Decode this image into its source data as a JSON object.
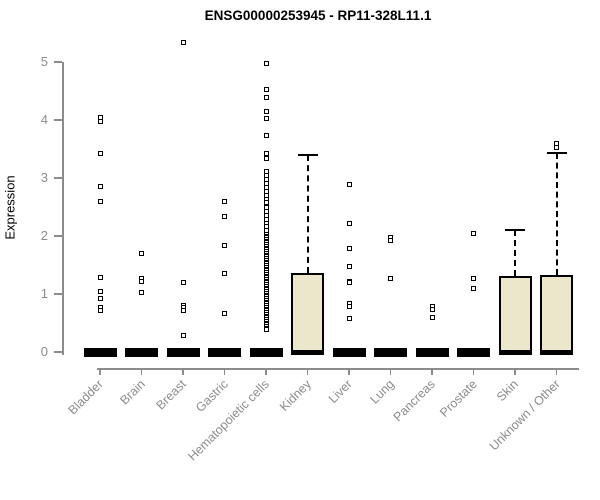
{
  "chart_data": {
    "type": "boxplot",
    "title": "ENSG00000253945 - RP11-328L11.1",
    "ylabel": "Expression",
    "ylim": [
      0,
      5.4
    ],
    "yticks": [
      0,
      1,
      2,
      3,
      4,
      5
    ],
    "grid": false,
    "legend": "none",
    "colors": {
      "box_fill": "#ece6cb",
      "box_border": "#000000",
      "axis": "#8c8c8c",
      "label_text": "#8c8c8c",
      "title_text": "#000000",
      "points": "#000000"
    },
    "categories": [
      "Bladder",
      "Brain",
      "Breast",
      "Gastric",
      "Hematopoietic cells",
      "Kidney",
      "Liver",
      "Lung",
      "Pancreas",
      "Prostate",
      "Skin",
      "Unknown / Other"
    ],
    "boxes": [
      {
        "label": "Bladder",
        "q1": 0,
        "median": 0,
        "q3": 0,
        "whisker_low": 0,
        "whisker_high": 0,
        "outliers": [
          4.05,
          3.98,
          3.43,
          2.86,
          2.59,
          1.28,
          1.05,
          0.93,
          0.76,
          0.72
        ]
      },
      {
        "label": "Brain",
        "q1": 0,
        "median": 0,
        "q3": 0,
        "whisker_low": 0,
        "whisker_high": 0,
        "outliers": [
          1.69,
          1.26,
          1.22,
          1.03
        ]
      },
      {
        "label": "Breast",
        "q1": 0,
        "median": 0,
        "q3": 0,
        "whisker_low": 0,
        "whisker_high": 0,
        "outliers": [
          5.34,
          1.19,
          0.81,
          0.76,
          0.71,
          0.29
        ]
      },
      {
        "label": "Gastric",
        "q1": 0,
        "median": 0,
        "q3": 0,
        "whisker_low": 0,
        "whisker_high": 0,
        "outliers": [
          2.59,
          2.33,
          1.84,
          1.36,
          0.67
        ]
      },
      {
        "label": "Hematopoietic cells",
        "q1": 0,
        "median": 0,
        "q3": 0,
        "whisker_low": 0,
        "whisker_high": 0,
        "outliers": [
          4.98,
          4.52,
          4.38,
          4.14,
          4.03,
          3.74,
          3.43,
          3.34,
          3.12,
          3.05,
          2.98,
          2.91,
          2.84,
          2.77,
          2.7,
          2.63,
          2.57,
          2.5,
          2.43,
          2.36,
          2.29,
          2.22,
          2.16,
          2.1,
          2.03,
          2.0,
          1.97,
          1.94,
          1.91,
          1.88,
          1.85,
          1.82,
          1.79,
          1.76,
          1.73,
          1.7,
          1.67,
          1.64,
          1.61,
          1.58,
          1.55,
          1.52,
          1.49,
          1.46,
          1.43,
          1.4,
          1.37,
          1.34,
          1.31,
          1.28,
          1.25,
          1.22,
          1.19,
          1.16,
          1.13,
          1.1,
          1.07,
          1.04,
          1.01,
          0.98,
          0.95,
          0.92,
          0.89,
          0.86,
          0.83,
          0.8,
          0.77,
          0.74,
          0.71,
          0.68,
          0.65,
          0.62,
          0.59,
          0.56,
          0.53,
          0.5,
          0.47,
          0.44,
          0.41,
          0.38
        ]
      },
      {
        "label": "Kidney",
        "q1": 0,
        "median": 0,
        "q3": 1.36,
        "whisker_low": 0,
        "whisker_high": 3.4,
        "outliers": []
      },
      {
        "label": "Liver",
        "q1": 0,
        "median": 0,
        "q3": 0,
        "whisker_low": 0,
        "whisker_high": 0,
        "outliers": [
          2.88,
          2.22,
          1.79,
          1.47,
          1.22,
          1.19,
          0.84,
          0.78,
          0.57
        ]
      },
      {
        "label": "Lung",
        "q1": 0,
        "median": 0,
        "q3": 0,
        "whisker_low": 0,
        "whisker_high": 0,
        "outliers": [
          1.98,
          1.92,
          1.26
        ]
      },
      {
        "label": "Pancreas",
        "q1": 0,
        "median": 0,
        "q3": 0,
        "whisker_low": 0,
        "whisker_high": 0,
        "outliers": [
          0.78,
          0.73,
          0.59
        ]
      },
      {
        "label": "Prostate",
        "q1": 0,
        "median": 0,
        "q3": 0,
        "whisker_low": 0,
        "whisker_high": 0,
        "outliers": [
          2.05,
          1.26,
          1.1
        ]
      },
      {
        "label": "Skin",
        "q1": 0,
        "median": 0,
        "q3": 1.31,
        "whisker_low": 0,
        "whisker_high": 2.1,
        "outliers": []
      },
      {
        "label": "Unknown / Other",
        "q1": 0,
        "median": 0,
        "q3": 1.33,
        "whisker_low": 0,
        "whisker_high": 3.43,
        "outliers": [
          3.6,
          3.53
        ]
      }
    ]
  }
}
